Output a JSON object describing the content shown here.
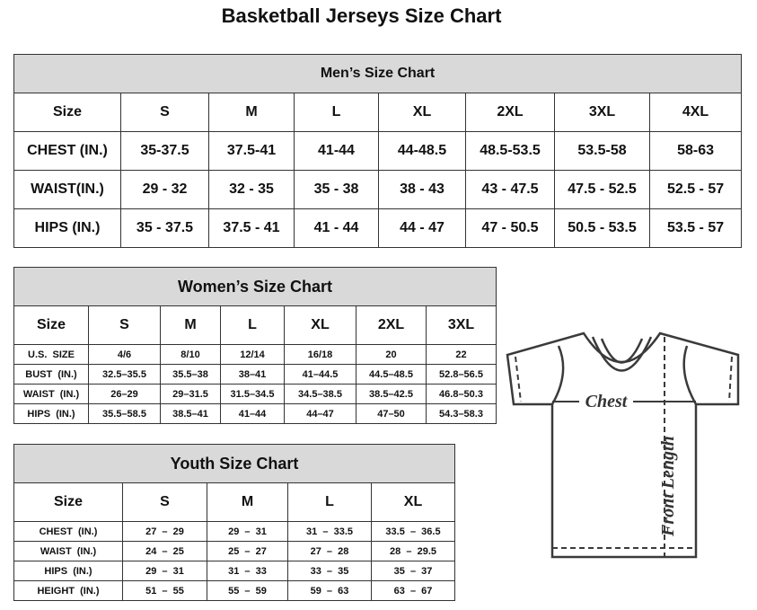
{
  "title": "Basketball Jerseys Size Chart",
  "tables": [
    {
      "id": "men",
      "caption": "Men’s Size Chart",
      "header": [
        "Size",
        "S",
        "M",
        "L",
        "XL",
        "2XL",
        "3XL",
        "4XL"
      ],
      "rows": [
        [
          "CHEST (IN.)",
          "35-37.5",
          "37.5-41",
          "41-44",
          "44-48.5",
          "48.5-53.5",
          "53.5-58",
          "58-63"
        ],
        [
          "WAIST(IN.)",
          "29 - 32",
          "32 - 35",
          "35 - 38",
          "38 - 43",
          "43 - 47.5",
          "47.5 - 52.5",
          "52.5 - 57"
        ],
        [
          "HIPS (IN.)",
          "35 - 37.5",
          "37.5 - 41",
          "41 - 44",
          "44 - 47",
          "47 - 50.5",
          "50.5 - 53.5",
          "53.5 - 57"
        ]
      ]
    },
    {
      "id": "women",
      "caption": "Women’s Size Chart",
      "header": [
        "Size",
        "S",
        "M",
        "L",
        "XL",
        "2XL",
        "3XL"
      ],
      "rows": [
        [
          "U.S.  SIZE",
          "4/6",
          "8/10",
          "12/14",
          "16/18",
          "20",
          "22"
        ],
        [
          "BUST  (IN.)",
          "32.5–35.5",
          "35.5–38",
          "38–41",
          "41–44.5",
          "44.5–48.5",
          "52.8–56.5"
        ],
        [
          "WAIST  (IN.)",
          "26–29",
          "29–31.5",
          "31.5–34.5",
          "34.5–38.5",
          "38.5–42.5",
          "46.8–50.3"
        ],
        [
          "HIPS  (IN.)",
          "35.5–58.5",
          "38.5–41",
          "41–44",
          "44–47",
          "47–50",
          "54.3–58.3"
        ]
      ]
    },
    {
      "id": "youth",
      "caption": "Youth Size Chart",
      "header": [
        "Size",
        "S",
        "M",
        "L",
        "XL"
      ],
      "rows": [
        [
          "CHEST  (IN.)",
          "27  –  29",
          "29  –  31",
          "31  –  33.5",
          "33.5  –  36.5"
        ],
        [
          "WAIST  (IN.)",
          "24  –  25",
          "25  –  27",
          "27  –  28",
          "28  –  29.5"
        ],
        [
          "HIPS  (IN.)",
          "29  –  31",
          "31  –  33",
          "33  –  35",
          "35  –  37"
        ],
        [
          "HEIGHT  (IN.)",
          "51  –  55",
          "55  –  59",
          "59  –  63",
          "63  –  67"
        ]
      ]
    }
  ],
  "diagram": {
    "chest_label": "Chest",
    "length_label": "Front Length"
  }
}
